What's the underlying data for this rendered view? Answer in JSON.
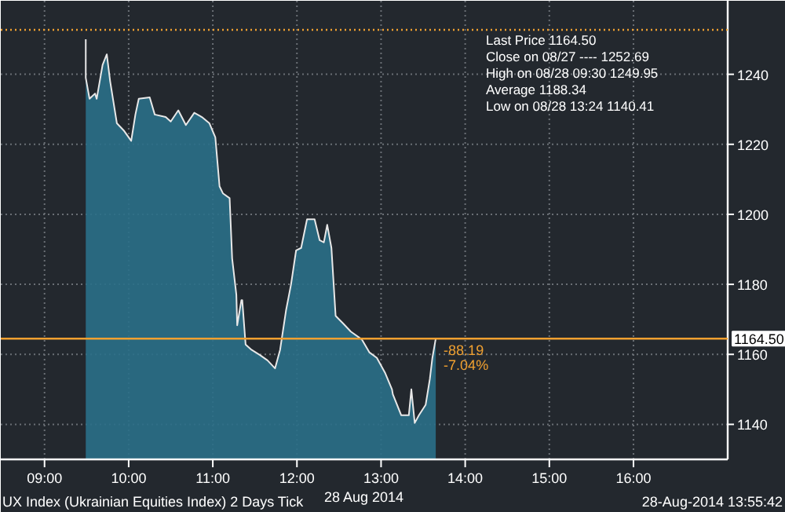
{
  "chart_data": {
    "type": "area",
    "xlabel": "28 Aug 2014",
    "x": [
      9.49,
      9.49,
      9.535,
      9.6,
      9.62,
      9.69,
      9.74,
      9.78,
      9.86,
      9.94,
      10.03,
      10.08,
      10.12,
      10.25,
      10.31,
      10.44,
      10.5,
      10.59,
      10.68,
      10.78,
      10.87,
      10.96,
      11.03,
      11.08,
      11.12,
      11.2,
      11.23,
      11.28,
      11.29,
      11.34,
      11.35,
      11.39,
      11.46,
      11.56,
      11.65,
      11.74,
      11.8,
      11.87,
      11.93,
      11.99,
      12.05,
      12.12,
      12.21,
      12.27,
      12.32,
      12.36,
      12.41,
      12.46,
      12.55,
      12.64,
      12.77,
      12.86,
      12.95,
      13.05,
      13.13,
      13.14,
      13.24,
      13.33,
      13.36,
      13.4,
      13.45,
      13.53,
      13.58,
      13.61,
      13.65
    ],
    "series": [
      {
        "color": "#2a6f88",
        "values": [
          1250,
          1239,
          1233,
          1234.5,
          1233,
          1242.7,
          1245.7,
          1238,
          1226,
          1224,
          1221,
          1228.5,
          1233,
          1233.4,
          1228.5,
          1227.8,
          1226.5,
          1229.7,
          1225.5,
          1229,
          1227.8,
          1226,
          1222,
          1208,
          1206,
          1204.6,
          1187.4,
          1177,
          1168.3,
          1175.5,
          1175.5,
          1162.8,
          1161.3,
          1159.8,
          1158.3,
          1156,
          1161.3,
          1172.5,
          1180,
          1189.7,
          1190.4,
          1198.6,
          1198.6,
          1192.6,
          1192,
          1197,
          1190.4,
          1171,
          1168.8,
          1166.5,
          1164.3,
          1160.6,
          1159,
          1154.6,
          1150,
          1148.6,
          1142.6,
          1142.6,
          1150,
          1140.4,
          1142.6,
          1145.6,
          1153,
          1159,
          1164.5
        ]
      }
    ],
    "xlim": [
      8.48,
      17.12
    ],
    "ylim": [
      1130,
      1261
    ],
    "xticks": [
      {
        "value": 9,
        "label": "09:00"
      },
      {
        "value": 10,
        "label": "10:00"
      },
      {
        "value": 11,
        "label": "11:00"
      },
      {
        "value": 12,
        "label": "12:00"
      },
      {
        "value": 13,
        "label": "13:00"
      },
      {
        "value": 14,
        "label": "14:00"
      },
      {
        "value": 15,
        "label": "15:00"
      },
      {
        "value": 16,
        "label": "16:00"
      }
    ],
    "yticks": [
      1140,
      1160,
      1180,
      1200,
      1220,
      1240
    ],
    "grid": true,
    "ref_lines": [
      {
        "axis": "y",
        "value": 1252.69,
        "color": "#f0a030",
        "line_style": "dotted"
      },
      {
        "axis": "y",
        "value": 1164.5,
        "label": "1164.50",
        "color": "#f0a030",
        "line_style": "solid"
      }
    ],
    "annotations": [
      "Last Price 1164.50",
      "Close on 08/27 ---- 1252.69",
      "High on 08/28 09:30 1249.95",
      "Average 1188.34",
      "Low on 08/28 13:24 1140.41",
      "-88.19",
      "-7.04%",
      "UX Index (Ukrainian Equities Index) 2 Days  Tick",
      "28-Aug-2014 13:55:42"
    ]
  }
}
